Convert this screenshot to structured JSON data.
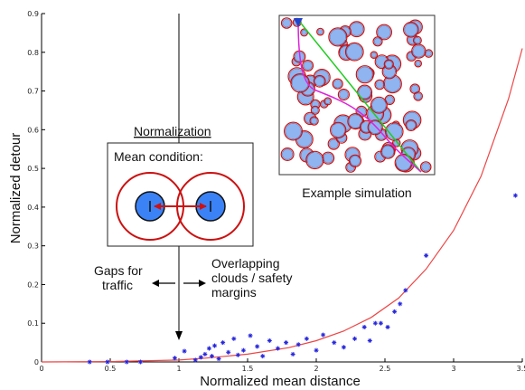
{
  "chart_data": {
    "type": "scatter",
    "xlabel": "Normalized mean distance",
    "ylabel": "Normalized detour",
    "xlim": [
      0,
      3.5
    ],
    "ylim": [
      0,
      0.9
    ],
    "x_ticks": [
      "0",
      "0.5",
      "1",
      "1.5",
      "2",
      "2.5",
      "3",
      "3.5"
    ],
    "y_ticks": [
      "0",
      "0.1",
      "0.2",
      "0.3",
      "0.4",
      "0.5",
      "0.6",
      "0.7",
      "0.8",
      "0.9"
    ],
    "grid": false,
    "series": [
      {
        "marker": "star",
        "color": "#2222dd",
        "x": [
          0.35,
          0.48,
          0.62,
          0.72,
          0.97,
          1.04,
          1.12,
          1.16,
          1.19,
          1.22,
          1.24,
          1.26,
          1.29,
          1.32,
          1.36,
          1.4,
          1.43,
          1.47,
          1.52,
          1.57,
          1.61,
          1.66,
          1.72,
          1.78,
          1.83,
          1.87,
          1.93,
          2.0,
          2.05,
          2.13,
          2.2,
          2.28,
          2.35,
          2.39,
          2.43,
          2.47,
          2.52,
          2.57,
          2.61,
          2.65,
          2.8,
          3.45
        ],
        "y": [
          0.0,
          0.0,
          0.0,
          0.0,
          0.01,
          0.028,
          0.005,
          0.012,
          0.02,
          0.035,
          0.015,
          0.042,
          0.008,
          0.05,
          0.025,
          0.06,
          0.018,
          0.03,
          0.068,
          0.04,
          0.015,
          0.055,
          0.035,
          0.05,
          0.02,
          0.045,
          0.06,
          0.03,
          0.07,
          0.05,
          0.038,
          0.06,
          0.09,
          0.055,
          0.1,
          0.1,
          0.09,
          0.13,
          0.15,
          0.185,
          0.275,
          0.43
        ]
      },
      {
        "type": "line",
        "color": "#ee4444",
        "x": [
          0.0,
          0.5,
          1.0,
          1.2,
          1.5,
          1.8,
          2.0,
          2.2,
          2.4,
          2.6,
          2.8,
          3.0,
          3.2,
          3.4,
          3.5
        ],
        "y": [
          0.0,
          0.001,
          0.005,
          0.01,
          0.02,
          0.037,
          0.055,
          0.08,
          0.115,
          0.165,
          0.24,
          0.34,
          0.48,
          0.68,
          0.81
        ]
      }
    ],
    "annotations": {
      "normalization_title": "Normalization",
      "mean_condition": "Mean condition:",
      "example_simulation": "Example simulation",
      "gaps": [
        "Gaps for",
        "traffic"
      ],
      "overlap": [
        "Overlapping",
        "clouds / safety",
        "margins"
      ]
    }
  },
  "colors": {
    "points": "#2222dd",
    "fit_line": "#ee4444",
    "circle_fill": "#3b82f6",
    "circle_outline": "#cc1111",
    "sim_green": "#22cc22",
    "sim_magenta": "#dd22dd"
  }
}
